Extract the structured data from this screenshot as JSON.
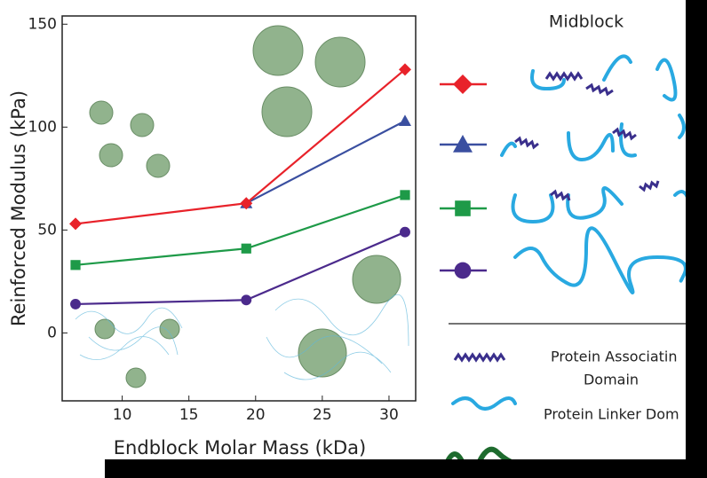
{
  "chart_data": {
    "type": "line",
    "x_label": "Endblock Molar Mass (kDa)",
    "y_label": "Reinforced Modulus (kPa)",
    "x": [
      6.5,
      19.3,
      31.2
    ],
    "series": [
      {
        "color": "#e8222a",
        "marker": "diamond",
        "values": [
          53,
          63,
          128
        ]
      },
      {
        "color": "#3a4fa0",
        "marker": "triangle",
        "values": [
          null,
          63,
          103
        ]
      },
      {
        "color": "#1e9a48",
        "marker": "square",
        "values": [
          33,
          41,
          67
        ]
      },
      {
        "color": "#4b2a8c",
        "marker": "circle",
        "values": [
          14,
          16,
          49
        ]
      }
    ],
    "xlim": [
      5.5,
      32
    ],
    "xticks": [
      10,
      15,
      20,
      25,
      30
    ],
    "ylim": [
      -33,
      154
    ],
    "yticks": [
      0,
      50,
      100,
      150
    ],
    "legend_title": "Midblock",
    "key": {
      "associating": [
        "Protein Associatin",
        "Domain"
      ],
      "linker": "Protein Linker Dom"
    }
  }
}
